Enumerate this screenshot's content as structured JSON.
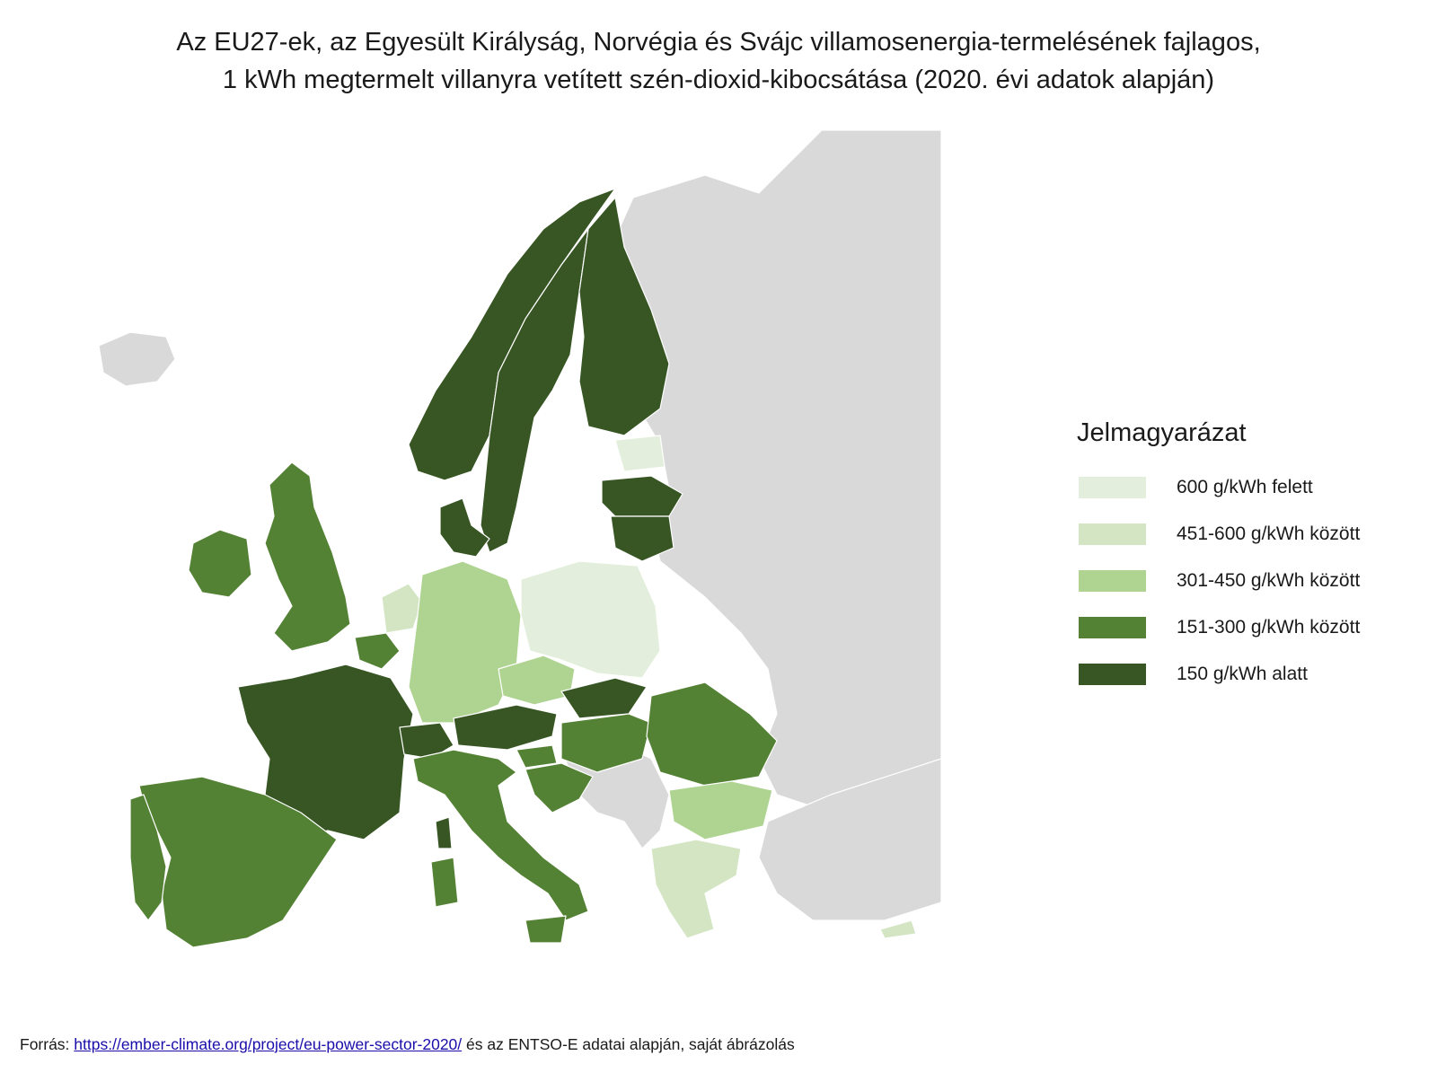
{
  "title": {
    "line1": "Az EU27-ek, az Egyesült Királyság, Norvégia és Svájc villamosenergia-termelésének fajlagos,",
    "line2": "1 kWh megtermelt villanyra vetített szén-dioxid-kibocsátása (2020. évi adatok alapján)"
  },
  "legend": {
    "title": "Jelmagyarázat",
    "items": [
      {
        "label": "600 g/kWh felett",
        "color": "#e3efdc"
      },
      {
        "label": "451-600 g/kWh között",
        "color": "#d4e5c4"
      },
      {
        "label": "301-450 g/kWh között",
        "color": "#afd491"
      },
      {
        "label": "151-300 g/kWh között",
        "color": "#548235"
      },
      {
        "label": "150 g/kWh alatt",
        "color": "#375623"
      }
    ]
  },
  "map_colors": {
    "non_data": "#d9d9d9",
    "sea": "#ffffff"
  },
  "source": {
    "prefix": "Forrás: ",
    "link": "https://ember-climate.org/project/eu-power-sector-2020/",
    "suffix": " és az ENTSO-E adatai alapján, saját ábrázolás"
  }
}
